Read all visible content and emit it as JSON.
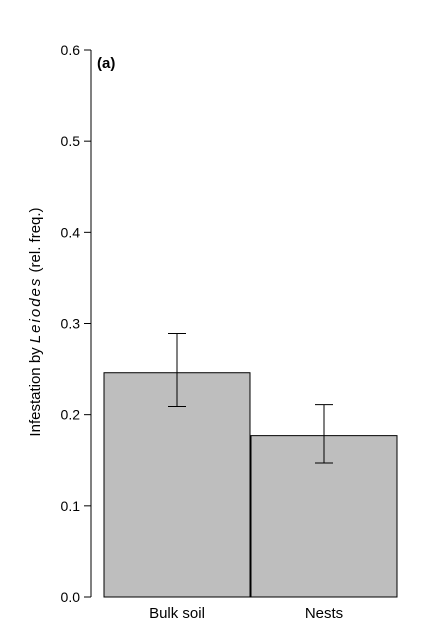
{
  "chart_data": {
    "type": "bar",
    "panel_label": "(a)",
    "categories": [
      "Bulk soil",
      "Nests"
    ],
    "values": [
      0.246,
      0.177
    ],
    "error_low": [
      0.209,
      0.147
    ],
    "error_high": [
      0.289,
      0.211
    ],
    "ylabel_prefix": "Infestation by ",
    "ylabel_italic": "Leiodes",
    "ylabel_suffix": " (rel. freq.)",
    "ylim": [
      0,
      0.6
    ],
    "yticks": [
      0.0,
      0.1,
      0.2,
      0.3,
      0.4,
      0.5,
      0.6
    ],
    "ytick_labels": [
      "0.0",
      "0.1",
      "0.2",
      "0.3",
      "0.4",
      "0.5",
      "0.6"
    ],
    "bar_color": "#bebebe",
    "grid": false,
    "legend": "none"
  }
}
